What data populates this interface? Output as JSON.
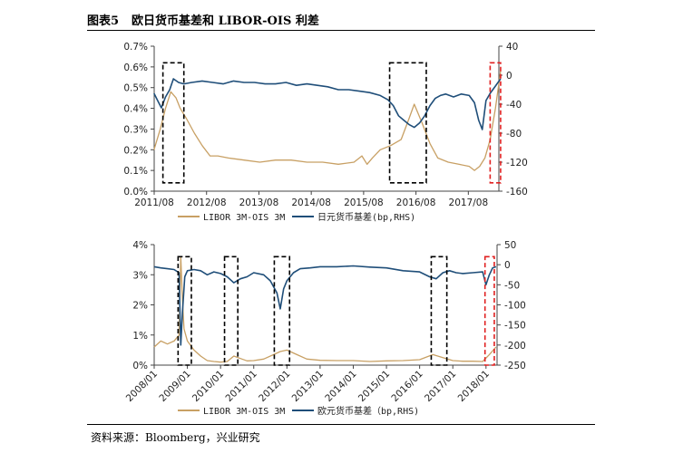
{
  "figure": {
    "number": "图表5",
    "title": "欧日货币基差和 LIBOR-OIS 利差"
  },
  "source": "资料来源：Bloomberg，兴业研究",
  "colors": {
    "libor": "#c8a064",
    "basis": "#1f4e79",
    "box_black": "#000000",
    "box_red": "#e02020"
  },
  "chart_data": [
    {
      "type": "line",
      "title": "",
      "x_ticks": [
        "2011/08",
        "2012/08",
        "2013/08",
        "2014/08",
        "2015/08",
        "2016/08",
        "2017/08"
      ],
      "x_range": [
        "2011/08",
        "2018/03"
      ],
      "y_left": {
        "ticks": [
          "0.0%",
          "0.1%",
          "0.2%",
          "0.3%",
          "0.4%",
          "0.5%",
          "0.6%",
          "0.7%"
        ],
        "range": [
          0,
          0.7
        ]
      },
      "y_right": {
        "ticks": [
          "40",
          "0",
          "-40",
          "-80",
          "-120",
          "-160"
        ],
        "range": [
          -160,
          40
        ]
      },
      "series": [
        {
          "name": "LIBOR 3M-OIS 3M",
          "axis": "left",
          "color": "#c8a064",
          "x": [
            2011.58,
            2011.7,
            2011.8,
            2011.9,
            2012.0,
            2012.08,
            2012.2,
            2012.35,
            2012.5,
            2012.65,
            2012.8,
            2013.0,
            2013.3,
            2013.6,
            2013.9,
            2014.2,
            2014.5,
            2014.8,
            2015.1,
            2015.4,
            2015.55,
            2015.65,
            2015.75,
            2015.9,
            2016.1,
            2016.3,
            2016.45,
            2016.55,
            2016.7,
            2016.85,
            2017.0,
            2017.2,
            2017.4,
            2017.6,
            2017.7,
            2017.8,
            2017.9,
            2018.0,
            2018.1,
            2018.2
          ],
          "y": [
            0.2,
            0.3,
            0.4,
            0.48,
            0.45,
            0.4,
            0.35,
            0.28,
            0.22,
            0.17,
            0.17,
            0.16,
            0.15,
            0.14,
            0.15,
            0.15,
            0.14,
            0.14,
            0.13,
            0.14,
            0.17,
            0.13,
            0.16,
            0.2,
            0.22,
            0.25,
            0.35,
            0.42,
            0.33,
            0.23,
            0.16,
            0.14,
            0.13,
            0.12,
            0.1,
            0.12,
            0.16,
            0.25,
            0.4,
            0.58
          ]
        },
        {
          "name": "日元货币基差(bp,RHS)",
          "axis": "right",
          "color": "#1f4e79",
          "x": [
            2011.58,
            2011.65,
            2011.72,
            2011.8,
            2011.88,
            2011.95,
            2012.05,
            2012.15,
            2012.3,
            2012.5,
            2012.7,
            2012.9,
            2013.1,
            2013.3,
            2013.5,
            2013.7,
            2013.9,
            2014.1,
            2014.3,
            2014.5,
            2014.7,
            2014.9,
            2015.1,
            2015.3,
            2015.5,
            2015.7,
            2015.9,
            2016.05,
            2016.15,
            2016.25,
            2016.35,
            2016.45,
            2016.55,
            2016.65,
            2016.75,
            2016.85,
            2016.95,
            2017.05,
            2017.15,
            2017.3,
            2017.45,
            2017.6,
            2017.7,
            2017.78,
            2017.85,
            2017.92,
            2018.0,
            2018.1,
            2018.2
          ],
          "y": [
            -25,
            -35,
            -45,
            -30,
            -20,
            -5,
            -10,
            -12,
            -10,
            -8,
            -10,
            -12,
            -8,
            -10,
            -10,
            -12,
            -12,
            -10,
            -14,
            -12,
            -14,
            -16,
            -20,
            -20,
            -22,
            -24,
            -28,
            -34,
            -42,
            -56,
            -62,
            -68,
            -72,
            -66,
            -56,
            -42,
            -32,
            -28,
            -26,
            -30,
            -26,
            -28,
            -38,
            -62,
            -75,
            -35,
            -25,
            -15,
            -5
          ]
        }
      ]
    },
    {
      "type": "line",
      "title": "",
      "x_ticks": [
        "2008/01",
        "2009/01",
        "2010/01",
        "2011/01",
        "2012/01",
        "2013/01",
        "2014/01",
        "2015/01",
        "2016/01",
        "2017/01",
        "2018/01"
      ],
      "x_range": [
        "2008/01",
        "2018/05"
      ],
      "y_left": {
        "ticks": [
          "0%",
          "1%",
          "2%",
          "3%",
          "4%"
        ],
        "range": [
          0,
          4
        ]
      },
      "y_right": {
        "ticks": [
          "50",
          "0",
          "-50",
          "-100",
          "-150",
          "-200",
          "-250"
        ],
        "range": [
          -250,
          50
        ]
      },
      "series": [
        {
          "name": "LIBOR 3M-OIS 3M",
          "axis": "left",
          "color": "#c8a064",
          "x": [
            2008.0,
            2008.2,
            2008.4,
            2008.6,
            2008.75,
            2008.8,
            2008.85,
            2008.9,
            2009.0,
            2009.2,
            2009.4,
            2009.6,
            2009.8,
            2010.0,
            2010.2,
            2010.4,
            2010.6,
            2010.8,
            2011.0,
            2011.3,
            2011.6,
            2011.8,
            2012.0,
            2012.3,
            2012.6,
            2013.0,
            2013.5,
            2014.0,
            2014.5,
            2015.0,
            2015.5,
            2016.0,
            2016.4,
            2016.7,
            2017.0,
            2017.3,
            2017.6,
            2017.9,
            2018.1,
            2018.3
          ],
          "y": [
            0.6,
            0.8,
            0.7,
            0.8,
            1.0,
            3.6,
            2.2,
            1.2,
            0.8,
            0.5,
            0.3,
            0.15,
            0.12,
            0.1,
            0.12,
            0.3,
            0.22,
            0.14,
            0.15,
            0.2,
            0.35,
            0.45,
            0.5,
            0.35,
            0.2,
            0.16,
            0.15,
            0.15,
            0.12,
            0.14,
            0.15,
            0.18,
            0.35,
            0.25,
            0.15,
            0.13,
            0.13,
            0.12,
            0.35,
            0.6
          ]
        },
        {
          "name": "欧元货币基差（bp,RHS)",
          "axis": "right",
          "color": "#1f4e79",
          "x": [
            2008.0,
            2008.2,
            2008.4,
            2008.6,
            2008.75,
            2008.8,
            2008.85,
            2008.92,
            2009.0,
            2009.2,
            2009.4,
            2009.6,
            2009.8,
            2010.0,
            2010.2,
            2010.4,
            2010.6,
            2010.8,
            2011.0,
            2011.3,
            2011.5,
            2011.7,
            2011.8,
            2011.9,
            2012.0,
            2012.2,
            2012.4,
            2012.7,
            2013.0,
            2013.5,
            2014.0,
            2014.5,
            2015.0,
            2015.5,
            2016.0,
            2016.3,
            2016.5,
            2016.7,
            2016.9,
            2017.1,
            2017.3,
            2017.6,
            2017.9,
            2018.0,
            2018.1,
            2018.2,
            2018.3
          ],
          "y": [
            -5,
            -8,
            -10,
            -12,
            -20,
            -200,
            -120,
            -30,
            -15,
            -12,
            -15,
            -25,
            -18,
            -22,
            -30,
            -45,
            -35,
            -30,
            -20,
            -25,
            -40,
            -70,
            -110,
            -60,
            -40,
            -20,
            -10,
            -8,
            -5,
            -5,
            -3,
            -6,
            -8,
            -15,
            -18,
            -30,
            -35,
            -20,
            -15,
            -20,
            -22,
            -20,
            -18,
            -50,
            -25,
            -8,
            -5
          ]
        }
      ]
    }
  ],
  "legends": [
    {
      "libor": "LIBOR 3M-OIS 3M",
      "basis": "日元货币基差(bp,RHS)"
    },
    {
      "libor": "LIBOR 3M-OIS 3M",
      "basis": "欧元货币基差（bp,RHS)"
    }
  ]
}
